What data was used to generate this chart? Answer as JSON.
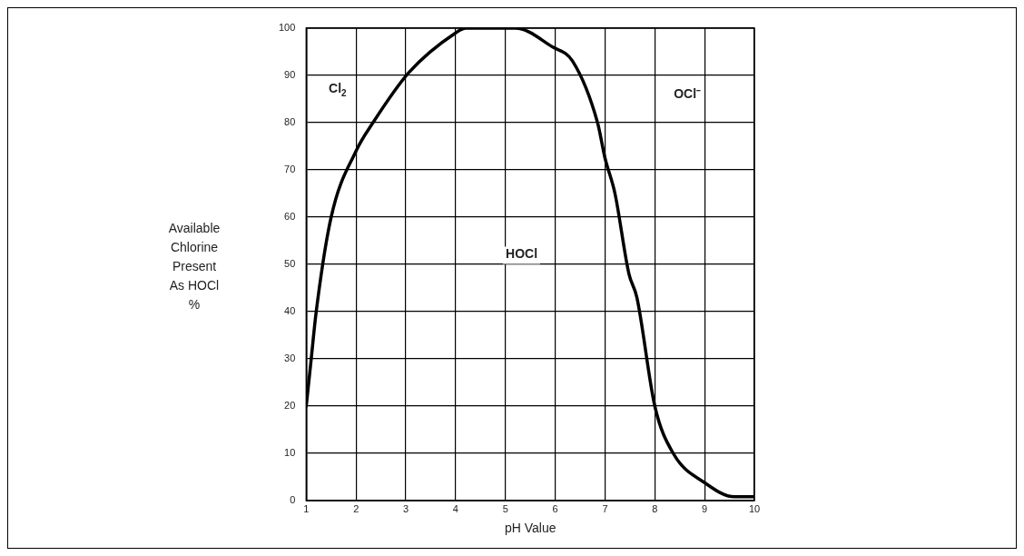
{
  "chart_data": {
    "type": "line",
    "xlabel": "pH Value",
    "ylabel": "Available\nChlorine\nPresent\nAs HOCl\n%",
    "x": [
      1,
      1.1,
      1.2,
      1.5,
      2,
      2.34,
      3.06,
      4,
      4.2,
      5.2,
      5.95,
      6.35,
      6.85,
      7,
      7.2,
      7.48,
      7.64,
      8,
      8.37,
      9,
      9.6,
      10
    ],
    "series": [
      {
        "color": "#000000",
        "values": [
          20,
          30,
          40,
          60,
          74,
          80,
          90.6,
          99,
          100,
          100,
          96,
          93,
          80,
          72.5,
          65,
          48,
          43,
          20,
          10,
          3.8,
          0.8,
          0.8
        ]
      }
    ],
    "xlim": [
      1,
      10
    ],
    "xticks": [
      1,
      2,
      3,
      4,
      5,
      6,
      7,
      8,
      9,
      10
    ],
    "ylim": [
      0,
      100
    ],
    "yticks": [
      0,
      10,
      20,
      30,
      40,
      50,
      60,
      70,
      80,
      90,
      100
    ],
    "grid": true,
    "marker": "none",
    "line_style": "solid",
    "annotations": [
      "Cl$_{2}$",
      "HOCl",
      "OCl⁻"
    ]
  }
}
